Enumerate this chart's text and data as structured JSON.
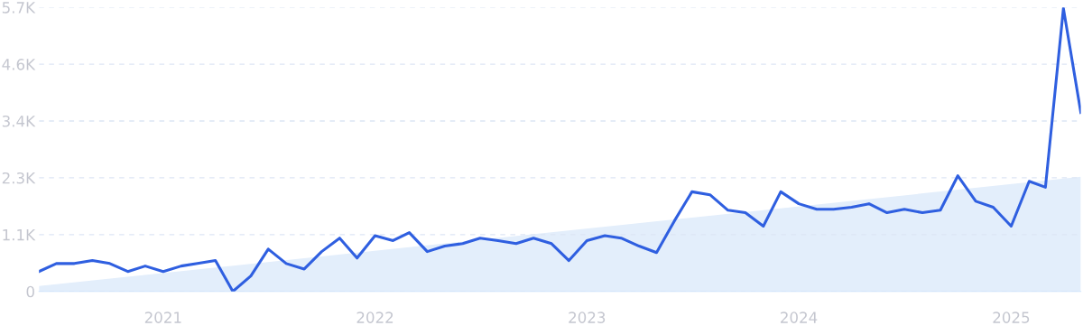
{
  "chart_data": {
    "type": "line",
    "xlim": [
      "2020-06",
      "2025-05"
    ],
    "xticks": [
      "2021",
      "2022",
      "2023",
      "2024",
      "2025"
    ],
    "ylim": [
      0,
      5700
    ],
    "yticks": [
      0,
      {
        "value": 1140,
        "label": "1.1K"
      },
      {
        "value": 2280,
        "label": "2.3K"
      },
      {
        "value": 3420,
        "label": "3.4K"
      },
      {
        "value": 4560,
        "label": "4.6K"
      },
      {
        "value": 5700,
        "label": "5.7K"
      }
    ],
    "grid": "y",
    "legend": false,
    "marker": "none",
    "line_style": "solid",
    "x": [
      "2020-06",
      "2020-07",
      "2020-08",
      "2020-09",
      "2020-10",
      "2020-11",
      "2020-12",
      "2021-01",
      "2021-02",
      "2021-03",
      "2021-04",
      "2021-05",
      "2021-06",
      "2021-07",
      "2021-08",
      "2021-09",
      "2021-10",
      "2021-11",
      "2021-12",
      "2022-01",
      "2022-02",
      "2022-03",
      "2022-04",
      "2022-05",
      "2022-06",
      "2022-07",
      "2022-08",
      "2022-09",
      "2022-10",
      "2022-11",
      "2022-12",
      "2023-01",
      "2023-02",
      "2023-03",
      "2023-04",
      "2023-05",
      "2023-06",
      "2023-07",
      "2023-08",
      "2023-09",
      "2023-10",
      "2023-11",
      "2023-12",
      "2024-01",
      "2024-02",
      "2024-03",
      "2024-04",
      "2024-05",
      "2024-06",
      "2024-07",
      "2024-08",
      "2024-09",
      "2024-10",
      "2024-11",
      "2024-12",
      "2025-01",
      "2025-02",
      "2025-03",
      "2025-04",
      "2025-05"
    ],
    "series": [
      {
        "type": "area",
        "color": "#e3eefb",
        "x": [
          "2020-06",
          "2025-05"
        ],
        "values": [
          110,
          2300
        ]
      },
      {
        "color": "#2f5fe0",
        "values": [
          400,
          560,
          560,
          620,
          560,
          400,
          510,
          400,
          510,
          560,
          620,
          0,
          310,
          850,
          560,
          450,
          800,
          1070,
          670,
          1120,
          1020,
          1180,
          800,
          910,
          960,
          1070,
          1020,
          960,
          1070,
          960,
          620,
          1020,
          1120,
          1070,
          910,
          780,
          1420,
          2000,
          1940,
          1630,
          1580,
          1310,
          2000,
          1760,
          1650,
          1650,
          1690,
          1760,
          1580,
          1650,
          1580,
          1630,
          2320,
          1810,
          1690,
          1310,
          2210,
          2090,
          5680,
          3590
        ]
      }
    ]
  }
}
